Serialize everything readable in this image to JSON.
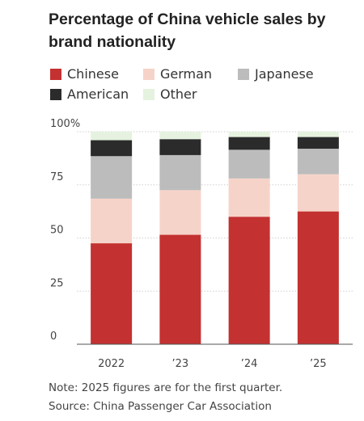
{
  "title": "Percentage of China vehicle sales by brand nationality",
  "note": "Note: 2025 figures are for the first quarter.",
  "source": "Source: China Passenger Car Association",
  "colors": {
    "Chinese": "#c43131",
    "German": "#f6d3c9",
    "Japanese": "#bcbcbc",
    "American": "#2b2b2b",
    "Other": "#e5f2df"
  },
  "legend": [
    "Chinese",
    "German",
    "Japanese",
    "American",
    "Other"
  ],
  "chart_data": {
    "type": "bar",
    "stacked": true,
    "categories": [
      "2022",
      "’23",
      "’24",
      "’25"
    ],
    "series": [
      {
        "name": "Chinese",
        "values": [
          47.5,
          51.5,
          60,
          62.5
        ]
      },
      {
        "name": "German",
        "values": [
          21,
          21,
          18,
          17.5
        ]
      },
      {
        "name": "Japanese",
        "values": [
          20,
          16.5,
          13.5,
          12
        ]
      },
      {
        "name": "American",
        "values": [
          7.5,
          7.5,
          6,
          5.5
        ]
      },
      {
        "name": "Other",
        "values": [
          4,
          3.5,
          2.5,
          2.5
        ]
      }
    ],
    "ylim": [
      0,
      100
    ],
    "yticks": [
      0,
      25,
      50,
      75,
      100
    ],
    "ytick_labels": [
      "0",
      "25",
      "50",
      "75",
      "100%"
    ],
    "grid": true,
    "xlabel": "",
    "ylabel": ""
  }
}
